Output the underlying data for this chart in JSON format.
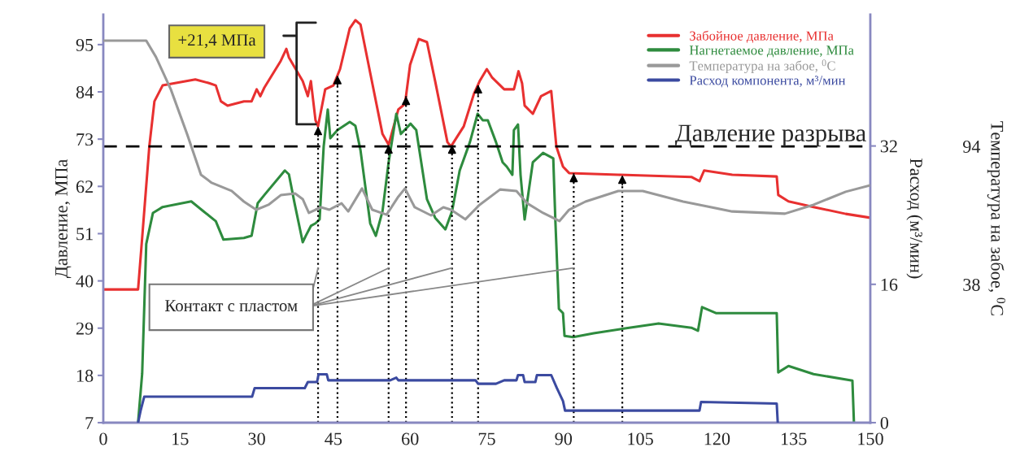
{
  "chart_data": {
    "type": "line",
    "xlim": [
      0,
      150
    ],
    "xticks": [
      0,
      15,
      30,
      45,
      60,
      75,
      90,
      105,
      120,
      135,
      150
    ],
    "ylim": [
      7,
      102
    ],
    "yticks": [
      7,
      18,
      29,
      40,
      51,
      62,
      73,
      84,
      95
    ],
    "y2lim": [
      0,
      47.2
    ],
    "y2ticks": [
      0,
      16,
      32
    ],
    "y3lim": [
      -18,
      147.4
    ],
    "y3ticks": [
      38,
      94
    ],
    "ylabel": "Давление, МПа",
    "y2label": "Расход (м³/мин)",
    "y3label": "Температура на забое, $^{0}$C",
    "legend": "top right",
    "annotations": [
      "+21,4 МПа",
      {
        "text": "Контакт с пластом",
        "x": 42,
        "y": 43
      }
    ],
    "ref_lines": [
      {
        "axis": "y",
        "value": 71.3,
        "label": "Давление разрыва",
        "color": "#000000",
        "line_style": "dashed"
      },
      {
        "axis": "x",
        "value": 42,
        "label": null,
        "color": "#000000",
        "line_style": "dotted"
      },
      {
        "axis": "x",
        "value": 45.8,
        "label": null,
        "color": "#000000",
        "line_style": "dotted"
      },
      {
        "axis": "x",
        "value": 55.8,
        "label": null,
        "color": "#000000",
        "line_style": "dotted"
      },
      {
        "axis": "x",
        "value": 59.2,
        "label": null,
        "color": "#000000",
        "line_style": "dotted"
      },
      {
        "axis": "x",
        "value": 68.2,
        "label": null,
        "color": "#000000",
        "line_style": "dotted"
      },
      {
        "axis": "x",
        "value": 73.3,
        "label": null,
        "color": "#000000",
        "line_style": "dotted"
      },
      {
        "axis": "x",
        "value": 92,
        "label": null,
        "color": "#000000",
        "line_style": "dotted"
      },
      {
        "axis": "x",
        "value": 101.5,
        "label": null,
        "color": "#000000",
        "line_style": "dotted"
      }
    ],
    "series": [
      {
        "name": "Забойное давление, МПа",
        "color": "#e83030",
        "axis": "y",
        "x": [
          0,
          6.8,
          7.6,
          9,
          10,
          11.6,
          18,
          20.8,
          22,
          23,
          24.3,
          27.5,
          29,
          30,
          30.7,
          31.5,
          34.7,
          35.8,
          36.3,
          39,
          40,
          40.6,
          41.5,
          42,
          43.4,
          45,
          46.3,
          48.2,
          49.3,
          50.3,
          52.2,
          54.6,
          55.8,
          57.7,
          59,
          60,
          61.7,
          63.3,
          64.9,
          67.3,
          68,
          70.5,
          72.5,
          73.6,
          75,
          76,
          78.4,
          80.3,
          81.2,
          81.9,
          82.4,
          84,
          85.6,
          87.6,
          88.6,
          89.9,
          91.1,
          100.7,
          115,
          116.6,
          117.5,
          123,
          131.7,
          132,
          134,
          138.9,
          145.2,
          150
        ],
        "values": [
          38,
          38,
          50,
          71.3,
          81.8,
          85.5,
          86.9,
          86,
          85.5,
          81.8,
          80.8,
          81.8,
          81.8,
          84.6,
          83,
          85,
          91.2,
          94,
          92,
          86.5,
          83,
          86.5,
          77.4,
          76,
          84.6,
          85.5,
          89.3,
          98.8,
          100.7,
          99.7,
          88.4,
          74.2,
          71.7,
          79.9,
          81.2,
          90.3,
          96.3,
          95.6,
          86.5,
          72.3,
          71.3,
          76,
          83.6,
          86.5,
          89.3,
          87.4,
          84.6,
          84.6,
          88.8,
          86,
          80.8,
          78.9,
          83,
          84.2,
          71.3,
          66.6,
          65.1,
          64.7,
          64.2,
          63.2,
          65.7,
          64.7,
          64.3,
          60,
          58.5,
          57.2,
          55.6,
          54.7
        ]
      },
      {
        "name": "Нагнетаемое давление, МПа",
        "color": "#2e8b3e",
        "axis": "y",
        "x": [
          6.8,
          7.6,
          8.4,
          9.7,
          11.6,
          17.2,
          19.6,
          22,
          23.5,
          27.5,
          29,
          30.2,
          31.5,
          35.5,
          36.3,
          37.4,
          39,
          39.6,
          40.6,
          41.5,
          42.3,
          43.1,
          43.9,
          44.4,
          45.8,
          48.2,
          49.3,
          50.3,
          52.2,
          53.3,
          54.6,
          55.8,
          57.3,
          58.2,
          60.1,
          61.2,
          63.3,
          64.9,
          66.9,
          68.2,
          69.7,
          71.7,
          73.2,
          74.2,
          75.2,
          76.8,
          78.1,
          78.9,
          80,
          80.3,
          81.1,
          81.6,
          82.4,
          84,
          86,
          88,
          88.4,
          89.1,
          89.9,
          90.2,
          91.9,
          95.9,
          102.3,
          108.6,
          115,
          116.3,
          117.1,
          119.8,
          131.7,
          132,
          134,
          138.9,
          146.5,
          146.8
        ],
        "values": [
          7,
          18.4,
          48.6,
          55.8,
          57.2,
          58.5,
          56.2,
          53.9,
          49.6,
          50,
          50.5,
          58.1,
          60,
          65.7,
          64.8,
          58.1,
          49,
          50.5,
          52.8,
          53.4,
          54.3,
          71.3,
          79.9,
          73.2,
          75.1,
          77,
          76.1,
          70.4,
          53.4,
          50.5,
          56.2,
          67.6,
          78.9,
          74.2,
          76.6,
          75.1,
          59,
          54.7,
          52,
          56.2,
          65.7,
          72.3,
          78.9,
          77.4,
          77.4,
          72.3,
          67.6,
          66.6,
          64.7,
          75.1,
          76.4,
          64.7,
          54.3,
          67.6,
          69.8,
          68.5,
          54.3,
          33.5,
          32.5,
          27.2,
          26.9,
          27.8,
          29,
          30.1,
          29.1,
          28.4,
          33.9,
          32.5,
          32.5,
          18.7,
          20.2,
          18.3,
          16.8,
          7
        ]
      },
      {
        "name": "Температура на забое, $^{0}$C",
        "color": "#999999",
        "axis": "y3",
        "x": [
          0,
          8.4,
          10.3,
          13.2,
          16.4,
          19.1,
          21.2,
          25.1,
          27.5,
          29.9,
          32.3,
          34.7,
          37.5,
          39,
          40.2,
          41.5,
          42.6,
          44.2,
          46.6,
          47.9,
          50.6,
          52.6,
          55.4,
          57.7,
          59,
          60.9,
          64.1,
          66.5,
          68,
          70.8,
          73.6,
          77.6,
          80.8,
          82.9,
          86,
          89.2,
          91.1,
          94.3,
          100.7,
          105.5,
          113.4,
          123,
          133.3,
          138.9,
          145.2,
          150
        ],
        "values": [
          136.8,
          136.8,
          130.2,
          117.1,
          98.9,
          82.5,
          79.2,
          75.9,
          71.6,
          68.3,
          70.3,
          74.2,
          74.9,
          72.6,
          67,
          68.3,
          69.3,
          68.3,
          70.9,
          67.6,
          76.9,
          68.3,
          66.3,
          73.6,
          76.9,
          69.3,
          66,
          69.3,
          68.3,
          64.4,
          70.3,
          76.5,
          75.9,
          70.9,
          67,
          63.7,
          68.3,
          71.6,
          75.9,
          75.9,
          71.6,
          67.6,
          66.7,
          70.3,
          75.6,
          78.2
        ]
      },
      {
        "name": "Расход компонента, м³/мин",
        "color": "#3b4aa0",
        "axis": "y2",
        "x": [
          6.8,
          7.3,
          8,
          29.1,
          29.6,
          39.4,
          40,
          41.8,
          42.1,
          43.7,
          44,
          56.1,
          57.3,
          57.7,
          72.8,
          73.3,
          76.8,
          78.4,
          80.8,
          81.1,
          82.1,
          82.4,
          84.5,
          84.8,
          87.6,
          88.7,
          89.9,
          90.3,
          94.3,
          116.6,
          116.9,
          131.7,
          131.9
        ],
        "values": [
          0,
          1.4,
          3,
          3,
          4,
          4,
          4.7,
          4.7,
          5.6,
          5.6,
          4.9,
          4.9,
          5.2,
          4.9,
          4.9,
          4.5,
          4.5,
          4.9,
          4.9,
          5.5,
          5.5,
          4.7,
          4.7,
          5.5,
          5.5,
          4,
          2.5,
          1.4,
          1.4,
          1.4,
          2.4,
          2.2,
          0
        ]
      }
    ]
  }
}
